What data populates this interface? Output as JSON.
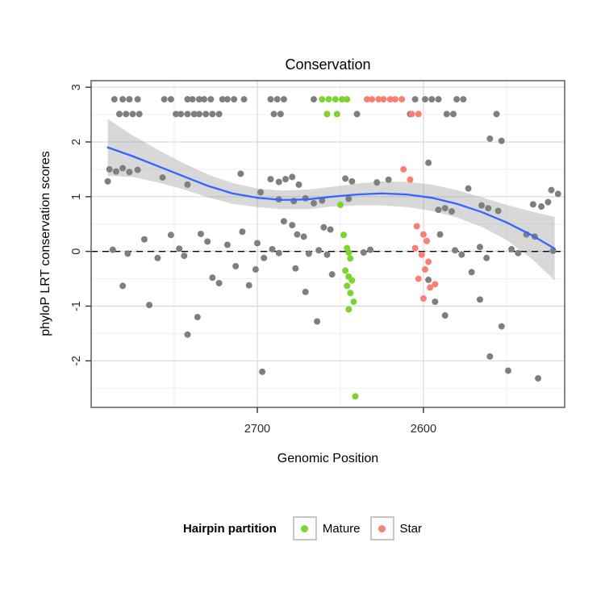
{
  "title": "Conservation",
  "legend": {
    "title": "Hairpin partition",
    "items": [
      {
        "label": "Mature",
        "color": "#7CD42E"
      },
      {
        "label": "Star",
        "color": "#FA8072"
      }
    ]
  },
  "colors": {
    "point_gray": "#7f7f7f",
    "smooth_line": "#3366FF",
    "ci_band": "#999999",
    "grid_major": "#d9d9d9",
    "grid_minor": "#efefef",
    "panel_border": "#858585",
    "reference_line": "#000000",
    "tick_text": "#2b2b2b"
  },
  "chart_data": {
    "type": "scatter",
    "title": "Conservation",
    "xlabel": "Genomic Position",
    "ylabel": "phyloP LRT conservation scores",
    "x_axis": {
      "reversed": true,
      "range_left_to_right": [
        2800,
        2515
      ],
      "major_ticks": [
        2700,
        2600
      ],
      "minor_gridlines": [
        2750,
        2650,
        2550
      ]
    },
    "y_axis": {
      "range": [
        -2.85,
        3.12
      ],
      "major_ticks": [
        3,
        2,
        1,
        0,
        -1,
        -2
      ],
      "minor_gridlines": [
        2.5,
        1.5,
        0.5,
        -0.5,
        -1.5,
        -2.5
      ]
    },
    "reference_line": {
      "y": 0,
      "style": "dashed"
    },
    "series": [
      {
        "name": "other",
        "color": "#7f7f7f",
        "in_legend": false,
        "points": [
          [
            2786,
            2.78
          ],
          [
            2781,
            2.78
          ],
          [
            2777,
            2.78
          ],
          [
            2772,
            2.78
          ],
          [
            2756,
            2.78
          ],
          [
            2752,
            2.78
          ],
          [
            2742,
            2.78
          ],
          [
            2739,
            2.78
          ],
          [
            2735,
            2.78
          ],
          [
            2732,
            2.78
          ],
          [
            2728,
            2.78
          ],
          [
            2721,
            2.78
          ],
          [
            2718,
            2.78
          ],
          [
            2714,
            2.78
          ],
          [
            2708,
            2.78
          ],
          [
            2692,
            2.78
          ],
          [
            2688,
            2.78
          ],
          [
            2684,
            2.78
          ],
          [
            2666,
            2.78
          ],
          [
            2605,
            2.78
          ],
          [
            2599,
            2.78
          ],
          [
            2595,
            2.78
          ],
          [
            2591,
            2.78
          ],
          [
            2580,
            2.78
          ],
          [
            2576,
            2.78
          ],
          [
            2783,
            2.51
          ],
          [
            2779,
            2.51
          ],
          [
            2775,
            2.51
          ],
          [
            2771,
            2.51
          ],
          [
            2749,
            2.51
          ],
          [
            2746,
            2.51
          ],
          [
            2742,
            2.51
          ],
          [
            2738,
            2.51
          ],
          [
            2735,
            2.51
          ],
          [
            2731,
            2.51
          ],
          [
            2727,
            2.51
          ],
          [
            2723,
            2.51
          ],
          [
            2690,
            2.51
          ],
          [
            2686,
            2.51
          ],
          [
            2640,
            2.51
          ],
          [
            2608,
            2.51
          ],
          [
            2586,
            2.51
          ],
          [
            2582,
            2.51
          ],
          [
            2556,
            2.51
          ],
          [
            2789,
            1.5
          ],
          [
            2785,
            1.46
          ],
          [
            2781,
            1.52
          ],
          [
            2777,
            1.45
          ],
          [
            2772,
            1.49
          ],
          [
            2790,
            1.28
          ],
          [
            2757,
            1.35
          ],
          [
            2742,
            1.22
          ],
          [
            2787,
            0.03
          ],
          [
            2778,
            -0.04
          ],
          [
            2768,
            0.22
          ],
          [
            2760,
            -0.12
          ],
          [
            2752,
            0.3
          ],
          [
            2747,
            0.05
          ],
          [
            2744,
            -0.08
          ],
          [
            2781,
            -0.63
          ],
          [
            2765,
            -0.98
          ],
          [
            2742,
            -1.52
          ],
          [
            2736,
            -1.2
          ],
          [
            2734,
            0.32
          ],
          [
            2730,
            0.18
          ],
          [
            2727,
            -0.48
          ],
          [
            2723,
            -0.58
          ],
          [
            2718,
            0.12
          ],
          [
            2713,
            -0.27
          ],
          [
            2709,
            0.36
          ],
          [
            2705,
            -0.62
          ],
          [
            2700,
            0.15
          ],
          [
            2710,
            1.42
          ],
          [
            2698,
            1.08
          ],
          [
            2701,
            -0.33
          ],
          [
            2696,
            -0.12
          ],
          [
            2697,
            -2.2
          ],
          [
            2692,
            1.32
          ],
          [
            2687,
            1.27
          ],
          [
            2683,
            1.32
          ],
          [
            2679,
            1.36
          ],
          [
            2675,
            1.22
          ],
          [
            2687,
            0.95
          ],
          [
            2678,
            0.92
          ],
          [
            2671,
            0.97
          ],
          [
            2666,
            0.88
          ],
          [
            2661,
            0.93
          ],
          [
            2684,
            0.55
          ],
          [
            2679,
            0.48
          ],
          [
            2660,
            0.44
          ],
          [
            2656,
            0.4
          ],
          [
            2676,
            0.31
          ],
          [
            2672,
            0.27
          ],
          [
            2691,
            0.04
          ],
          [
            2687,
            -0.03
          ],
          [
            2669,
            -0.04
          ],
          [
            2663,
            0.02
          ],
          [
            2658,
            -0.06
          ],
          [
            2677,
            -0.31
          ],
          [
            2671,
            -0.74
          ],
          [
            2664,
            -1.28
          ],
          [
            2655,
            -0.42
          ],
          [
            2647,
            1.33
          ],
          [
            2643,
            1.28
          ],
          [
            2645,
            0.96
          ],
          [
            2636,
            -0.02
          ],
          [
            2632,
            0.03
          ],
          [
            2628,
            1.26
          ],
          [
            2621,
            1.31
          ],
          [
            2597,
            1.62
          ],
          [
            2591,
            0.76
          ],
          [
            2587,
            0.79
          ],
          [
            2583,
            0.73
          ],
          [
            2590,
            0.31
          ],
          [
            2597,
            -0.52
          ],
          [
            2593,
            -0.92
          ],
          [
            2587,
            -1.17
          ],
          [
            2581,
            0.02
          ],
          [
            2577,
            -0.06
          ],
          [
            2571,
            -0.38
          ],
          [
            2566,
            -0.88
          ],
          [
            2573,
            1.15
          ],
          [
            2560,
            2.06
          ],
          [
            2553,
            2.02
          ],
          [
            2565,
            0.84
          ],
          [
            2561,
            0.79
          ],
          [
            2555,
            0.74
          ],
          [
            2566,
            0.08
          ],
          [
            2562,
            -0.12
          ],
          [
            2547,
            0.04
          ],
          [
            2543,
            -0.03
          ],
          [
            2522,
            0.01
          ],
          [
            2553,
            -1.37
          ],
          [
            2560,
            -1.92
          ],
          [
            2549,
            -2.18
          ],
          [
            2531,
            -2.32
          ],
          [
            2534,
            0.86
          ],
          [
            2529,
            0.82
          ],
          [
            2525,
            0.9
          ],
          [
            2538,
            0.31
          ],
          [
            2533,
            0.27
          ],
          [
            2523,
            1.12
          ],
          [
            2519,
            1.05
          ]
        ]
      },
      {
        "name": "Mature",
        "color": "#7CD42E",
        "in_legend": true,
        "points": [
          [
            2661,
            2.78
          ],
          [
            2657,
            2.78
          ],
          [
            2653,
            2.78
          ],
          [
            2649,
            2.78
          ],
          [
            2646,
            2.78
          ],
          [
            2658,
            2.51
          ],
          [
            2652,
            2.51
          ],
          [
            2650,
            0.85
          ],
          [
            2648,
            0.3
          ],
          [
            2646,
            0.06
          ],
          [
            2645,
            -0.02
          ],
          [
            2644,
            -0.13
          ],
          [
            2647,
            -0.35
          ],
          [
            2645,
            -0.46
          ],
          [
            2643,
            -0.53
          ],
          [
            2646,
            -0.63
          ],
          [
            2644,
            -0.76
          ],
          [
            2642,
            -0.92
          ],
          [
            2645,
            -1.06
          ],
          [
            2641,
            -2.65
          ]
        ]
      },
      {
        "name": "Star",
        "color": "#FA8072",
        "in_legend": true,
        "points": [
          [
            2634,
            2.78
          ],
          [
            2631,
            2.78
          ],
          [
            2627,
            2.78
          ],
          [
            2624,
            2.78
          ],
          [
            2620,
            2.78
          ],
          [
            2617,
            2.78
          ],
          [
            2613,
            2.78
          ],
          [
            2607,
            2.51
          ],
          [
            2603,
            2.51
          ],
          [
            2612,
            1.5
          ],
          [
            2608,
            1.31
          ],
          [
            2604,
            0.46
          ],
          [
            2600,
            0.31
          ],
          [
            2598,
            0.19
          ],
          [
            2605,
            0.06
          ],
          [
            2601,
            -0.06
          ],
          [
            2597,
            -0.19
          ],
          [
            2599,
            -0.33
          ],
          [
            2603,
            -0.5
          ],
          [
            2596,
            -0.66
          ],
          [
            2600,
            -0.86
          ],
          [
            2593,
            -0.6
          ]
        ]
      }
    ],
    "smooth": {
      "x": [
        2790,
        2775,
        2760,
        2745,
        2730,
        2715,
        2700,
        2685,
        2670,
        2655,
        2640,
        2625,
        2610,
        2595,
        2580,
        2565,
        2550,
        2535,
        2521
      ],
      "y": [
        1.9,
        1.74,
        1.56,
        1.38,
        1.2,
        1.06,
        0.98,
        0.94,
        0.95,
        1.0,
        1.04,
        1.06,
        1.04,
        0.98,
        0.87,
        0.72,
        0.53,
        0.3,
        0.05
      ],
      "ci_upper": [
        2.42,
        2.12,
        1.86,
        1.62,
        1.41,
        1.25,
        1.15,
        1.11,
        1.13,
        1.18,
        1.24,
        1.28,
        1.27,
        1.22,
        1.12,
        0.99,
        0.85,
        0.73,
        0.63
      ],
      "ci_lower": [
        1.38,
        1.36,
        1.26,
        1.14,
        0.99,
        0.87,
        0.81,
        0.77,
        0.77,
        0.82,
        0.84,
        0.84,
        0.81,
        0.74,
        0.62,
        0.45,
        0.21,
        -0.13,
        -0.53
      ]
    }
  }
}
